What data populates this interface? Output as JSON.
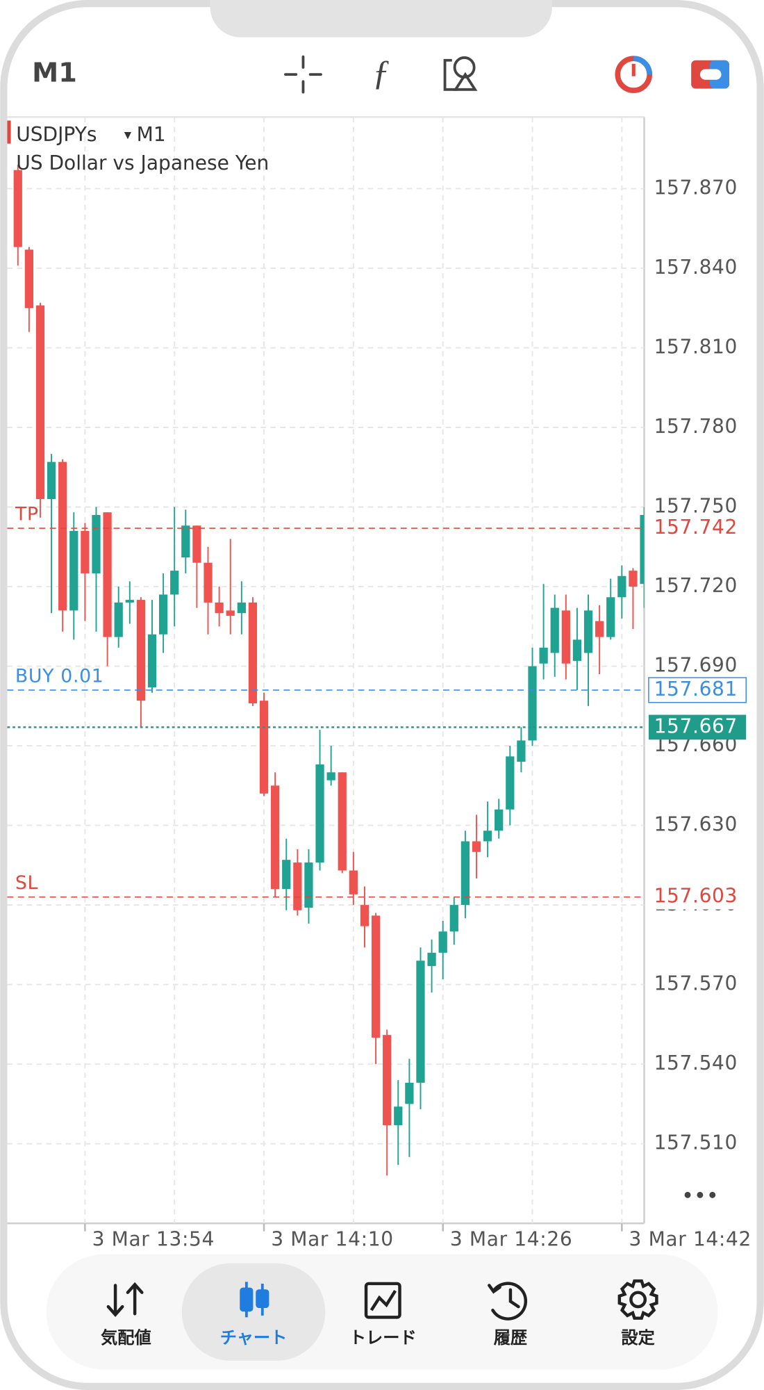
{
  "header": {
    "timeframe": "M1"
  },
  "chart_data": {
    "type": "candlestick",
    "symbol": "USDJPYs",
    "timeframe": "M1",
    "title": "US Dollar vs Japanese Yen",
    "categories": [
      null,
      null,
      null,
      null,
      null,
      null,
      "3 Mar 13:54",
      null,
      null,
      null,
      null,
      null,
      null,
      null,
      null,
      null,
      null,
      null,
      null,
      null,
      null,
      null,
      "3 Mar 14:10",
      null,
      null,
      null,
      null,
      null,
      null,
      null,
      null,
      null,
      null,
      null,
      null,
      null,
      null,
      null,
      "3 Mar 14:26",
      null,
      null,
      null,
      null,
      null,
      null,
      null,
      null,
      null,
      null,
      null,
      null,
      null,
      null,
      null,
      "3 Mar 14:42",
      null,
      null
    ],
    "open": [
      157.877,
      157.847,
      157.826,
      157.753,
      157.767,
      157.711,
      157.741,
      157.725,
      157.748,
      157.701,
      157.714,
      157.715,
      157.682,
      157.702,
      157.717,
      157.731,
      157.743,
      157.729,
      157.714,
      157.711,
      157.71,
      157.714,
      157.677,
      157.645,
      157.606,
      157.616,
      157.599,
      157.616,
      157.647,
      157.65,
      157.613,
      157.6,
      157.596,
      157.551,
      157.517,
      157.525,
      157.533,
      157.577,
      157.582,
      157.59,
      157.6,
      157.624,
      157.624,
      157.628,
      157.636,
      157.654,
      157.662,
      157.691,
      157.695,
      157.711,
      157.692,
      157.695,
      157.707,
      157.701,
      157.716,
      157.726,
      157.721
    ],
    "high": [
      157.879,
      157.848,
      157.827,
      157.77,
      157.768,
      157.748,
      157.744,
      157.75,
      157.748,
      157.72,
      157.722,
      157.716,
      157.715,
      157.725,
      157.75,
      157.749,
      157.743,
      157.735,
      157.72,
      157.738,
      157.722,
      157.716,
      157.68,
      157.65,
      157.625,
      157.621,
      157.621,
      157.666,
      157.66,
      157.65,
      157.62,
      157.607,
      157.597,
      157.553,
      157.534,
      157.542,
      157.584,
      157.587,
      157.594,
      157.603,
      157.628,
      157.634,
      157.639,
      157.64,
      157.66,
      157.667,
      157.697,
      157.721,
      157.717,
      157.717,
      157.712,
      157.717,
      157.713,
      157.723,
      157.728,
      157.727,
      157.75
    ],
    "low": [
      157.841,
      157.816,
      157.746,
      157.71,
      157.703,
      157.7,
      157.707,
      157.703,
      157.69,
      157.697,
      157.706,
      157.667,
      157.68,
      157.695,
      157.705,
      157.725,
      157.712,
      157.702,
      157.705,
      157.702,
      157.702,
      157.675,
      157.641,
      157.603,
      157.598,
      157.596,
      157.593,
      157.613,
      157.645,
      157.612,
      157.6,
      157.584,
      157.54,
      157.498,
      157.502,
      157.505,
      157.523,
      157.567,
      157.572,
      157.585,
      157.595,
      157.61,
      157.618,
      157.625,
      157.63,
      157.65,
      157.66,
      157.685,
      157.686,
      157.685,
      157.681,
      157.675,
      157.687,
      157.7,
      157.708,
      157.704,
      157.712
    ],
    "close": [
      157.848,
      157.825,
      157.753,
      157.767,
      157.711,
      157.741,
      157.725,
      157.747,
      157.701,
      157.714,
      157.715,
      157.677,
      157.702,
      157.717,
      157.726,
      157.743,
      157.729,
      157.714,
      157.71,
      157.709,
      157.714,
      157.676,
      157.642,
      157.606,
      157.617,
      157.598,
      157.616,
      157.653,
      157.65,
      157.613,
      157.604,
      157.592,
      157.55,
      157.517,
      157.524,
      157.533,
      157.579,
      157.582,
      157.59,
      157.6,
      157.624,
      157.62,
      157.628,
      157.636,
      157.656,
      157.662,
      157.69,
      157.697,
      157.712,
      157.691,
      157.7,
      157.711,
      157.701,
      157.716,
      157.724,
      157.72,
      157.747
    ],
    "up_color": "#20a392",
    "down_color": "#ef5350",
    "ylim": [
      157.48,
      157.897
    ],
    "yticks": [
      {
        "value": 157.51,
        "label": "157.510"
      },
      {
        "value": 157.54,
        "label": "157.540"
      },
      {
        "value": 157.57,
        "label": "157.570"
      },
      {
        "value": 157.6,
        "label": "157.600"
      },
      {
        "value": 157.63,
        "label": "157.630"
      },
      {
        "value": 157.66,
        "label": "157.660"
      },
      {
        "value": 157.69,
        "label": "157.690"
      },
      {
        "value": 157.72,
        "label": "157.720"
      },
      {
        "value": 157.75,
        "label": "157.750"
      },
      {
        "value": 157.78,
        "label": "157.780"
      },
      {
        "value": 157.81,
        "label": "157.810"
      },
      {
        "value": 157.84,
        "label": "157.840"
      },
      {
        "value": 157.87,
        "label": "157.870"
      }
    ],
    "grid": true,
    "price_lines": [
      {
        "name": "TP",
        "value": 157.742,
        "color": "#e0483f"
      },
      {
        "name": "BUY 0.01",
        "value": 157.681,
        "color": "#3b8ee6"
      },
      {
        "name": "SL",
        "value": 157.603,
        "color": "#e0483f"
      }
    ],
    "bid": {
      "value": 157.667,
      "color": "#1f9c8a"
    }
  },
  "nav": {
    "items": [
      "気配値",
      "チャート",
      "トレード",
      "履歴",
      "設定"
    ]
  }
}
